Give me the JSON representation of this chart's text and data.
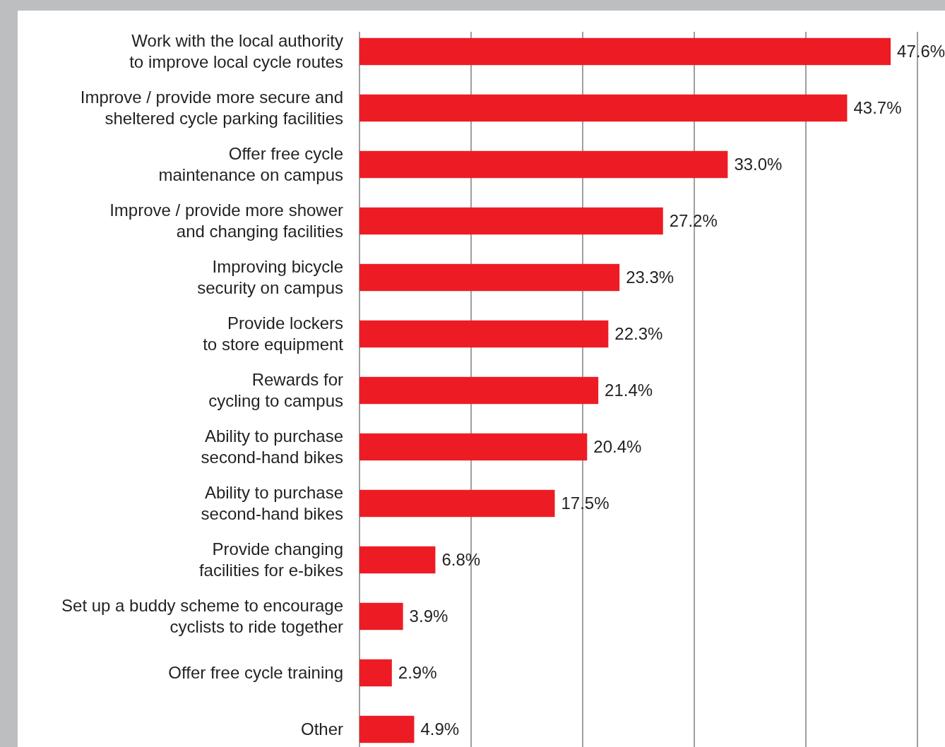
{
  "chart_data": {
    "type": "bar",
    "orientation": "horizontal",
    "categories": [
      "Work with the local authority to improve local cycle routes",
      "Improve / provide more secure and sheltered cycle parking facilities",
      "Offer free cycle maintenance on campus",
      "Improve / provide more shower and changing facilities",
      "Improving bicycle security on campus",
      "Provide lockers to store equipment",
      "Rewards for cycling to campus",
      "Ability to purchase second-hand bikes",
      "Ability to purchase second-hand bikes",
      "Provide changing facilities for e-bikes",
      "Set up a buddy scheme to encourage cyclists to ride together",
      "Offer free cycle training",
      "Other"
    ],
    "values": [
      47.6,
      43.7,
      33.0,
      27.2,
      23.3,
      22.3,
      21.4,
      20.4,
      17.5,
      6.8,
      3.9,
      2.9,
      4.9
    ],
    "value_labels": [
      "47.6%",
      "43.7%",
      "33.0%",
      "27.2%",
      "23.3%",
      "22.3%",
      "21.4%",
      "20.4%",
      "17.5%",
      "6.8%",
      "3.9%",
      "2.9%",
      "4.9%"
    ],
    "color": "#ed1c24",
    "xlim": [
      0,
      50
    ],
    "xticks": [
      {
        "value": 0,
        "label": null
      },
      {
        "value": 10,
        "label": null
      },
      {
        "value": 20,
        "label": null
      },
      {
        "value": 30,
        "label": null
      },
      {
        "value": 40,
        "label": null
      },
      {
        "value": 50,
        "label": null
      }
    ],
    "grid": "x",
    "tick_labels": "y"
  }
}
